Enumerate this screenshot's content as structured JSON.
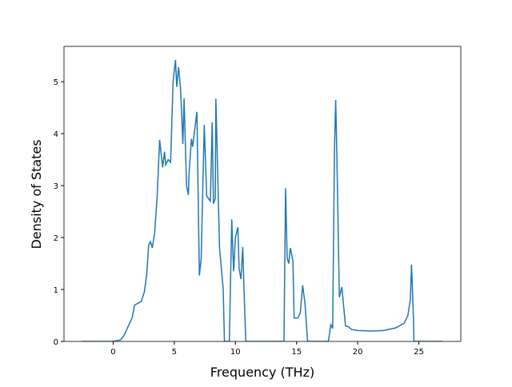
{
  "chart_data": {
    "type": "line",
    "xlabel": "Frequency (THz)",
    "ylabel": "Density of States",
    "x": [
      -2.55,
      0,
      0.6,
      0.9,
      1.25,
      1.55,
      1.75,
      2.0,
      2.3,
      2.55,
      2.75,
      2.9,
      3.05,
      3.2,
      3.4,
      3.6,
      3.8,
      4.05,
      4.2,
      4.3,
      4.5,
      4.7,
      4.9,
      5.1,
      5.2,
      5.35,
      5.5,
      5.6,
      5.7,
      5.8,
      6.0,
      6.15,
      6.2,
      6.4,
      6.5,
      6.85,
      7.05,
      7.2,
      7.45,
      7.65,
      7.95,
      8.1,
      8.2,
      8.35,
      8.4,
      8.7,
      9.0,
      9.1,
      9.5,
      9.7,
      9.85,
      10.0,
      10.2,
      10.3,
      10.45,
      10.6,
      10.7,
      10.85,
      13.97,
      14.1,
      14.23,
      14.36,
      14.49,
      14.7,
      14.8,
      15.1,
      15.3,
      15.5,
      15.7,
      15.9,
      17.6,
      17.8,
      17.95,
      18.1,
      18.2,
      18.3,
      18.5,
      18.7,
      18.9,
      19.0,
      19.25,
      19.5,
      20.0,
      21.1,
      22.1,
      23.1,
      23.8,
      24.1,
      24.3,
      24.4,
      24.55,
      24.6,
      26.96
    ],
    "series": [
      {
        "color": "#1f77b4",
        "values": [
          0,
          0,
          0.03,
          0.12,
          0.3,
          0.45,
          0.7,
          0.73,
          0.77,
          0.95,
          1.3,
          1.85,
          1.92,
          1.8,
          2.1,
          2.8,
          3.88,
          3.35,
          3.65,
          3.4,
          3.5,
          3.45,
          5.0,
          5.42,
          4.9,
          5.28,
          4.9,
          4.4,
          3.8,
          4.68,
          3.0,
          2.82,
          3.2,
          3.9,
          3.75,
          4.42,
          1.27,
          1.6,
          4.17,
          2.8,
          2.7,
          4.22,
          2.65,
          2.75,
          4.67,
          1.8,
          1.0,
          0,
          0,
          2.35,
          1.35,
          2.0,
          2.2,
          1.4,
          1.2,
          1.82,
          1.0,
          0,
          0,
          2.95,
          1.6,
          1.5,
          1.8,
          1.55,
          0.45,
          0.45,
          0.55,
          1.08,
          0.7,
          0,
          0,
          0.32,
          0.25,
          3.7,
          4.65,
          3.5,
          0.85,
          1.05,
          0.55,
          0.3,
          0.28,
          0.23,
          0.21,
          0.2,
          0.21,
          0.26,
          0.35,
          0.5,
          0.8,
          1.48,
          0.5,
          0,
          0
        ]
      }
    ],
    "xlim": [
      -4.02,
      28.43
    ],
    "ylim": [
      0,
      5.68
    ],
    "xticks": [
      0,
      5,
      10,
      15,
      20,
      25
    ],
    "yticks": [
      0,
      1,
      2,
      3,
      4,
      5
    ]
  }
}
